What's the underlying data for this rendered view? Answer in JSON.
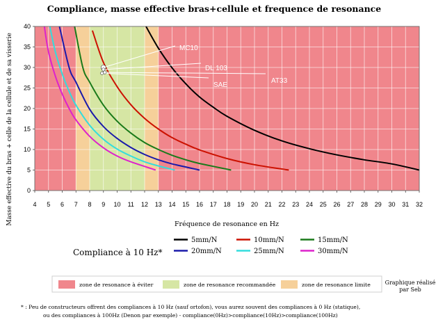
{
  "chart_data": {
    "type": "line",
    "title": "Compliance, masse effective bras+cellule et frequence de resonance",
    "xlabel": "Fréquence de resonance en Hz",
    "ylabel": "Masse effective du bras + celle de la cellule et de sa visserie",
    "xlim": [
      4,
      32
    ],
    "ylim": [
      0,
      40
    ],
    "x_ticks": [
      "4",
      "5",
      "6",
      "7",
      "8",
      "9",
      "10",
      "11",
      "12",
      "13",
      "14",
      "15",
      "16",
      "17",
      "18",
      "19",
      "20",
      "21",
      "22",
      "23",
      "24",
      "25",
      "26",
      "27",
      "28",
      "29",
      "30",
      "31",
      "32"
    ],
    "y_ticks": [
      "0",
      "5",
      "10",
      "15",
      "20",
      "25",
      "30",
      "35",
      "40"
    ],
    "grid": true,
    "zones": [
      {
        "x_from": 4,
        "x_to": 7,
        "color": "#f0868c",
        "legend_index": 0
      },
      {
        "x_from": 7,
        "x_to": 8,
        "color": "#f6d09a",
        "legend_index": 2
      },
      {
        "x_from": 8,
        "x_to": 12,
        "color": "#d6e6a4",
        "legend_index": 1
      },
      {
        "x_from": 12,
        "x_to": 13,
        "color": "#f6d09a",
        "legend_index": 2
      },
      {
        "x_from": 13,
        "x_to": 32,
        "color": "#f0868c",
        "legend_index": 0
      }
    ],
    "series": [
      {
        "name": "5mm/N",
        "compliance": 5,
        "color": "#000000",
        "x": [
          12.1,
          13,
          14,
          15,
          16,
          17,
          18,
          20,
          22,
          24,
          26,
          28,
          30,
          32
        ],
        "y": [
          40,
          34.7,
          29.9,
          26,
          22.8,
          20.3,
          18.1,
          14.7,
          12.1,
          10.2,
          8.7,
          7.5,
          6.5,
          5
        ]
      },
      {
        "name": "10mm/N",
        "compliance": 10,
        "color": "#cc1100",
        "x": [
          8.2,
          9,
          10,
          11,
          12,
          13,
          14,
          15,
          16,
          18,
          20,
          22.5
        ],
        "y": [
          39,
          31.2,
          25.3,
          20.9,
          17.6,
          15,
          12.9,
          11.3,
          9.9,
          7.8,
          6.3,
          5
        ]
      },
      {
        "name": "15mm/N",
        "compliance": 15,
        "color": "#1a7a1a",
        "x": [
          6.9,
          7.5,
          8,
          9,
          10,
          11,
          12,
          13,
          14,
          15,
          16,
          18.3
        ],
        "y": [
          40,
          30,
          26.4,
          20.8,
          16.9,
          14,
          11.7,
          10,
          8.6,
          7.5,
          6.6,
          5
        ]
      },
      {
        "name": "20mm/N",
        "compliance": 20,
        "color": "#1a1aaa",
        "x": [
          5.8,
          6.5,
          7,
          8,
          9,
          10,
          11,
          12,
          13,
          14,
          16
        ],
        "y": [
          40,
          30,
          26.4,
          19.8,
          15.6,
          12.7,
          10.5,
          8.8,
          7.5,
          6.5,
          5
        ]
      },
      {
        "name": "25mm/N",
        "compliance": 25,
        "color": "#33dddd",
        "x": [
          5.1,
          5.5,
          6,
          6.5,
          7,
          8,
          9,
          10,
          11,
          12,
          13,
          14.2
        ],
        "y": [
          40,
          33.8,
          28.4,
          24.2,
          20.8,
          15.9,
          12.5,
          10.1,
          8.4,
          7,
          6,
          5
        ]
      },
      {
        "name": "30mm/N",
        "compliance": 30,
        "color": "#dd22cc",
        "x": [
          4.7,
          5,
          5.5,
          6,
          6.5,
          7,
          8,
          9,
          10,
          11,
          12.8
        ],
        "y": [
          40,
          33.8,
          27.9,
          23.5,
          20,
          17.2,
          13.2,
          10.4,
          8.4,
          7,
          5
        ]
      }
    ],
    "annotations": [
      {
        "label": "MC10",
        "x": 9,
        "y": 30
      },
      {
        "label": "DL 103",
        "x": 9,
        "y": 29.5
      },
      {
        "label": "AT33",
        "x": 9.1,
        "y": 28.8
      },
      {
        "label": "SAE",
        "x": 8.9,
        "y": 28.6
      }
    ],
    "compliance_label": "Compliance à 10 Hz*",
    "legend_zones": [
      "zone de resonance à éviter",
      "zone de resonance recommandée",
      "zone de resonance limite"
    ],
    "credit": [
      "Graphique réalisé",
      "par Seb"
    ],
    "footnote": [
      "* : Peu de constructeurs offrent des compliances à 10 Hz (sauf ortofon), vous aurez souvent des compliances à 0 Hz (statique),",
      "ou des compliances à 100Hz (Denon par exemple) - compliance(0Hz)>compliance(10Hz)>compliance(100Hz)"
    ]
  }
}
